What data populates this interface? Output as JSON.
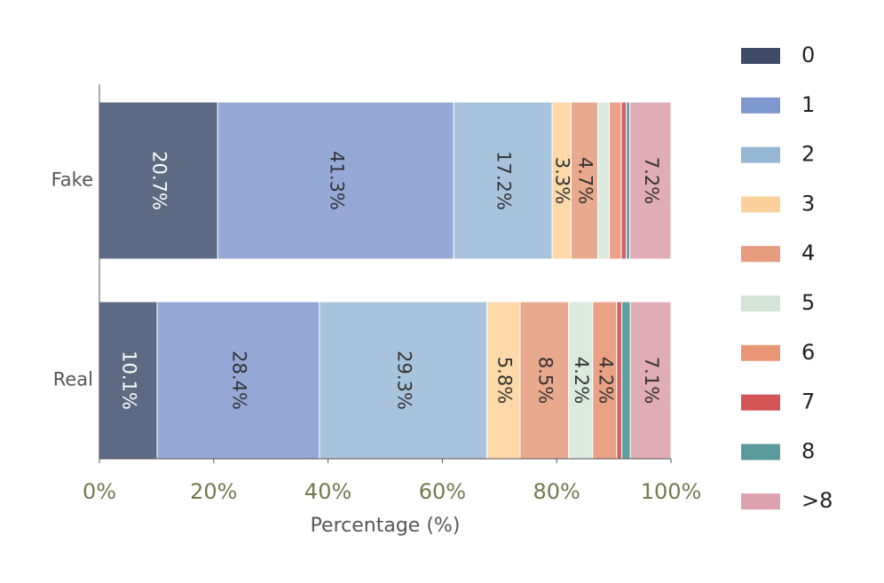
{
  "chart_data": {
    "type": "stacked-barh",
    "categories": [
      "Fake",
      "Real"
    ],
    "series": [
      {
        "name": "0",
        "color": "#5d6a84",
        "legend_color": "#3f4b66",
        "values": [
          20.7,
          10.1
        ],
        "value_labels": [
          "20.7%",
          "10.1%"
        ]
      },
      {
        "name": "1",
        "color": "#95a9d7",
        "legend_color": "#7f97cf",
        "values": [
          41.3,
          28.4
        ],
        "value_labels": [
          "41.3%",
          "28.4%"
        ]
      },
      {
        "name": "2",
        "color": "#a8c4dc",
        "legend_color": "#95b7d4",
        "values": [
          17.2,
          29.3
        ],
        "value_labels": [
          "17.2%",
          "29.3%"
        ]
      },
      {
        "name": "3",
        "color": "#fdd8a9",
        "legend_color": "#fcd09a",
        "values": [
          3.3,
          5.8
        ],
        "value_labels": [
          "3.3%",
          "5.8%"
        ]
      },
      {
        "name": "4",
        "color": "#e9a98e",
        "legend_color": "#e59c7f",
        "values": [
          4.7,
          8.5
        ],
        "value_labels": [
          "4.7%",
          "8.5%"
        ]
      },
      {
        "name": "5",
        "color": "#dce9de",
        "legend_color": "#d3e4d6",
        "values": [
          2.0,
          4.2
        ],
        "value_labels": [
          null,
          "4.2%"
        ]
      },
      {
        "name": "6",
        "color": "#eaa185",
        "legend_color": "#e89675",
        "values": [
          2.1,
          4.2
        ],
        "value_labels": [
          null,
          "4.2%"
        ]
      },
      {
        "name": "7",
        "color": "#d66161",
        "legend_color": "#d45555",
        "values": [
          0.9,
          0.9
        ],
        "value_labels": [
          null,
          null
        ]
      },
      {
        "name": "8",
        "color": "#609ea1",
        "legend_color": "#5a9a9c",
        "values": [
          0.6,
          1.5
        ],
        "value_labels": [
          null,
          null
        ]
      },
      {
        "name": ">8",
        "color": "#e0acb5",
        "legend_color": "#dba1ac",
        "values": [
          7.2,
          7.1
        ],
        "value_labels": [
          "7.2%",
          "7.1%"
        ]
      }
    ],
    "xlabel": "Percentage (%)",
    "xlim": [
      0,
      100
    ],
    "xticks": [
      {
        "value": 0,
        "label": "0%"
      },
      {
        "value": 20,
        "label": "20%"
      },
      {
        "value": 40,
        "label": "40%"
      },
      {
        "value": 60,
        "label": "60%"
      },
      {
        "value": 80,
        "label": "80%"
      },
      {
        "value": 100,
        "label": "100%"
      }
    ],
    "legend": "right"
  }
}
